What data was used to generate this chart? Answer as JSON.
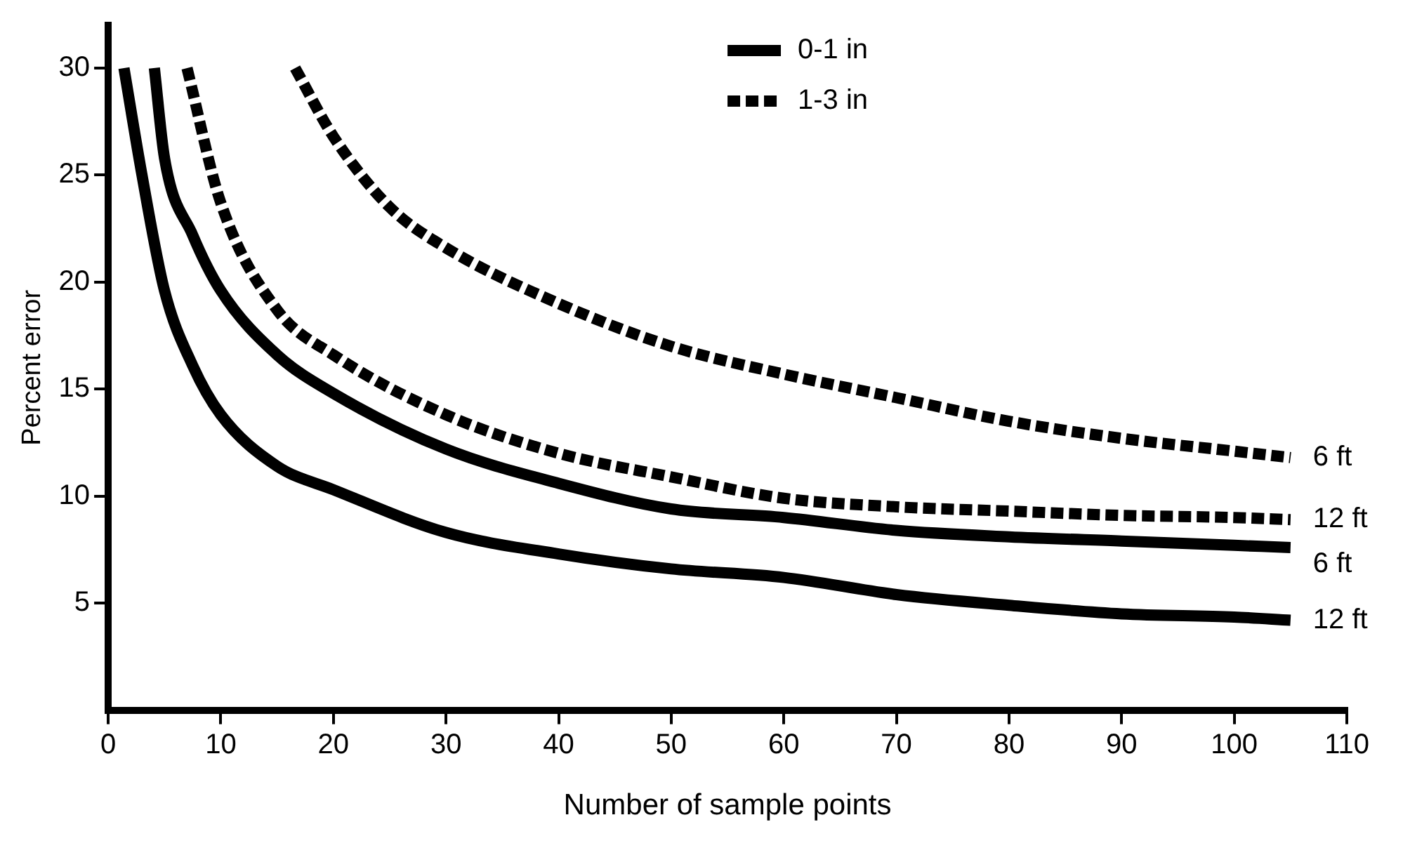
{
  "chart_data": {
    "type": "line",
    "xlabel": "Number of sample points",
    "ylabel": "Percent error",
    "xlim": [
      0,
      110
    ],
    "xticks": [
      0,
      10,
      20,
      30,
      40,
      50,
      60,
      70,
      80,
      90,
      100,
      110
    ],
    "ylim": [
      0,
      32
    ],
    "yticks": [
      5,
      10,
      15,
      20,
      25,
      30
    ],
    "grid": false,
    "marker": "none",
    "annotations": [
      "0-1 in",
      "1-3 in"
    ],
    "series": [
      {
        "name": "6 ft",
        "color": "#000000",
        "line_style": "dashed",
        "x": [
          16.6,
          20,
          25,
          30,
          40,
          50,
          60,
          70,
          80,
          90,
          100,
          105
        ],
        "values": [
          30,
          26.8,
          23.5,
          21.6,
          19.0,
          17.0,
          15.7,
          14.6,
          13.5,
          12.7,
          12.1,
          11.8
        ]
      },
      {
        "name": "12 ft",
        "color": "#000000",
        "line_style": "dashed",
        "x": [
          7,
          10,
          15,
          20,
          30,
          40,
          50,
          60,
          70,
          80,
          90,
          100,
          105
        ],
        "values": [
          30,
          23.7,
          18.7,
          16.6,
          13.8,
          12.0,
          10.9,
          9.9,
          9.5,
          9.3,
          9.1,
          9.0,
          8.9
        ]
      },
      {
        "name": "6 ft",
        "color": "#000000",
        "line_style": "solid",
        "x": [
          4.1,
          5,
          7.5,
          10,
          15,
          20,
          30,
          40,
          50,
          60,
          70,
          80,
          90,
          100,
          105
        ],
        "values": [
          30,
          25.8,
          22.2,
          19.6,
          16.6,
          14.8,
          12.2,
          10.6,
          9.4,
          9.0,
          8.4,
          8.1,
          7.9,
          7.7,
          7.6
        ]
      },
      {
        "name": "12 ft",
        "color": "#000000",
        "line_style": "solid",
        "x": [
          1.4,
          3,
          5,
          7.5,
          10,
          15,
          20,
          30,
          40,
          50,
          60,
          70,
          80,
          90,
          100,
          105
        ],
        "values": [
          30,
          25,
          19.6,
          16.1,
          13.8,
          11.4,
          10.3,
          8.3,
          7.3,
          6.6,
          6.2,
          5.4,
          4.9,
          4.5,
          4.35,
          4.2
        ]
      }
    ]
  }
}
